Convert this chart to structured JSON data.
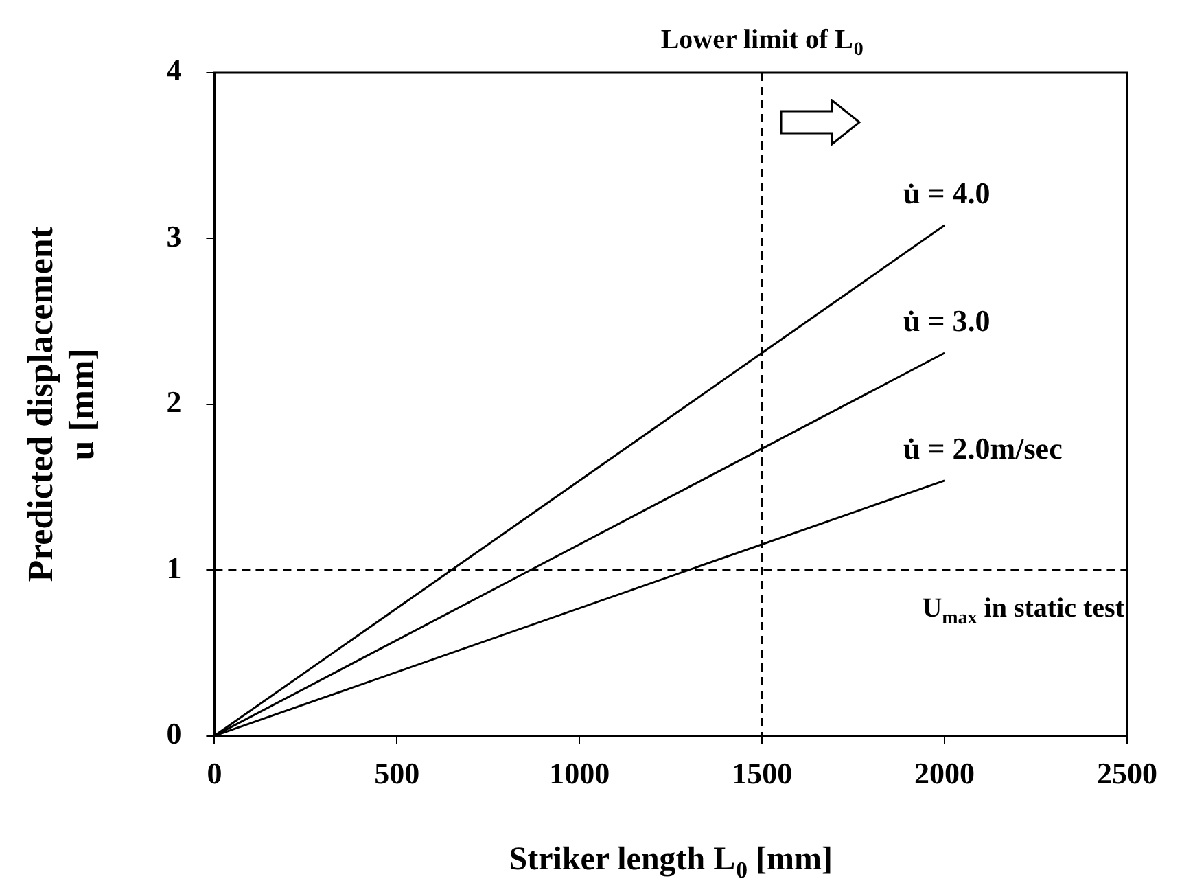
{
  "chart_data": {
    "type": "line",
    "xlabel": "Striker length L$_{0}$ [mm]",
    "ylabel": "Predicted displacement\nu [mm]",
    "x": [
      0,
      2000
    ],
    "series": [
      {
        "name": "u̇ = 4.0",
        "color": "#000000",
        "values": [
          0,
          3.08
        ]
      },
      {
        "name": "u̇ = 3.0",
        "color": "#000000",
        "values": [
          0,
          2.31
        ]
      },
      {
        "name": "u̇ = 2.0m/sec",
        "color": "#000000",
        "values": [
          0,
          1.54
        ]
      }
    ],
    "xlim": [
      0,
      2500
    ],
    "xticks": [
      0,
      500,
      1000,
      1500,
      2000,
      2500
    ],
    "ylim": [
      0,
      4
    ],
    "yticks": [
      0,
      1,
      2,
      3,
      4
    ],
    "grid": false,
    "legend": false,
    "marker": "none",
    "line_style": "solid",
    "ref_lines": [
      {
        "axis": "x",
        "value": 1500,
        "label": "Lower limit of L$_{0}$",
        "line_style": "dashed",
        "color": "#000000"
      },
      {
        "axis": "y",
        "value": 1,
        "label": "U$_{max}$ in static test",
        "line_style": "dashed",
        "color": "#000000"
      }
    ]
  }
}
